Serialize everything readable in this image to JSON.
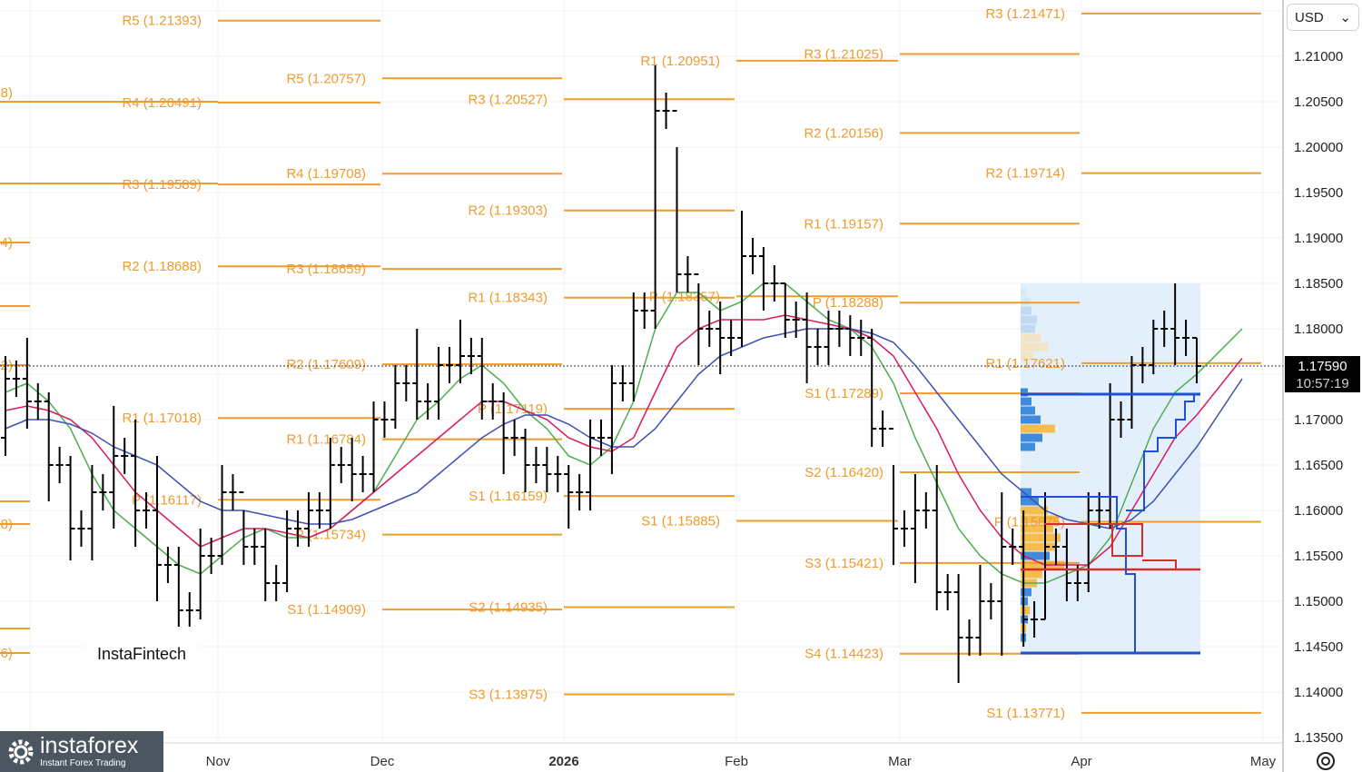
{
  "chart_data": {
    "type": "bar",
    "instrument_note": "OHLC price bars with pivot levels",
    "y_range": [
      1.134,
      1.22
    ],
    "y_ticks": [
      "1.21000",
      "1.20500",
      "1.20000",
      "1.19500",
      "1.19000",
      "1.18500",
      "1.18000",
      "1.17500",
      "1.17000",
      "1.16500",
      "1.16000",
      "1.15500",
      "1.15000",
      "1.14500",
      "1.14000",
      "1.13500"
    ],
    "x_labels": [
      {
        "label": "Nov",
        "bold": false
      },
      {
        "label": "Dec",
        "bold": false
      },
      {
        "label": "2026",
        "bold": true
      },
      {
        "label": "Feb",
        "bold": false
      },
      {
        "label": "Mar",
        "bold": false
      },
      {
        "label": "Apr",
        "bold": false
      },
      {
        "label": "May",
        "bold": false
      }
    ],
    "pivot_blocks": [
      {
        "period": "Oct",
        "levels": [
          {
            "label": "R5 (1.21393)",
            "value": 1.21393
          },
          {
            "label": "R4 (1.20491)",
            "value": 1.20491
          },
          {
            "label": "R3 (1.19589)",
            "value": 1.19589
          },
          {
            "label": "R2 (1.18688)",
            "value": 1.18688
          },
          {
            "label": "R1 (1.17018)",
            "value": 1.17018
          },
          {
            "label": "P (1.16117)",
            "value": 1.16117
          }
        ]
      },
      {
        "period": "Nov",
        "levels": [
          {
            "label": "R5 (1.20757)",
            "value": 1.20757
          },
          {
            "label": "R4 (1.19708)",
            "value": 1.19708
          },
          {
            "label": "R3 (1.18659)",
            "value": 1.18659
          },
          {
            "label": "R2 (1.17609)",
            "value": 1.17609
          },
          {
            "label": "R1 (1.16784)",
            "value": 1.16784
          },
          {
            "label": "P (1.15734)",
            "value": 1.15734
          },
          {
            "label": "S1 (1.14909)",
            "value": 1.14909
          }
        ]
      },
      {
        "period": "Dec",
        "levels": [
          {
            "label": "R3 (1.20527)",
            "value": 1.20527
          },
          {
            "label": "R2 (1.19303)",
            "value": 1.19303
          },
          {
            "label": "R1 (1.18343)",
            "value": 1.18343
          },
          {
            "label": "P (1.17119)",
            "value": 1.17119
          },
          {
            "label": "S1 (1.16159)",
            "value": 1.16159
          },
          {
            "label": "S2 (1.14935)",
            "value": 1.14935
          },
          {
            "label": "S3 (1.13975)",
            "value": 1.13975
          }
        ]
      },
      {
        "period": "Jan",
        "levels": [
          {
            "label": "R1 (1.20951)",
            "value": 1.20951
          },
          {
            "label": "P (1.18357)",
            "value": 1.18357
          },
          {
            "label": "S1 (1.15885)",
            "value": 1.15885
          }
        ]
      },
      {
        "period": "Feb",
        "levels": [
          {
            "label": "R3 (1.21025)",
            "value": 1.21025
          },
          {
            "label": "R2 (1.20156)",
            "value": 1.20156
          },
          {
            "label": "R1 (1.19157)",
            "value": 1.19157
          },
          {
            "label": "P (1.18288)",
            "value": 1.18288
          },
          {
            "label": "S1 (1.17289)",
            "value": 1.17289
          },
          {
            "label": "S2 (1.16420)",
            "value": 1.1642
          },
          {
            "label": "S3 (1.15421)",
            "value": 1.15421
          },
          {
            "label": "S4 (1.14423)",
            "value": 1.14423
          }
        ]
      },
      {
        "period": "Mar",
        "levels": [
          {
            "label": "R3 (1.21471)",
            "value": 1.21471
          },
          {
            "label": "R2 (1.19714)",
            "value": 1.19714
          },
          {
            "label": "R1 (1.17621)",
            "value": 1.17621
          },
          {
            "label": "P (1.15875)",
            "value": 1.15875
          },
          {
            "label": "S1 (1.13771)",
            "value": 1.13771
          }
        ]
      }
    ],
    "edge_labels": [
      "8)",
      "4)",
      "2)",
      "8)",
      "6)"
    ],
    "ohlc_weeks": [
      {
        "o": 1.168,
        "h": 1.177,
        "l": 1.166,
        "c": 1.1745
      },
      {
        "o": 1.1745,
        "h": 1.179,
        "l": 1.169,
        "c": 1.172
      },
      {
        "o": 1.172,
        "h": 1.173,
        "l": 1.161,
        "c": 1.165
      },
      {
        "o": 1.165,
        "h": 1.166,
        "l": 1.1545,
        "c": 1.158
      },
      {
        "o": 1.158,
        "h": 1.165,
        "l": 1.1545,
        "c": 1.162
      },
      {
        "o": 1.162,
        "h": 1.1715,
        "l": 1.158,
        "c": 1.166
      },
      {
        "o": 1.166,
        "h": 1.17,
        "l": 1.156,
        "c": 1.16
      },
      {
        "o": 1.16,
        "h": 1.166,
        "l": 1.15,
        "c": 1.154
      },
      {
        "o": 1.154,
        "h": 1.156,
        "l": 1.147,
        "c": 1.149
      },
      {
        "o": 1.149,
        "h": 1.158,
        "l": 1.148,
        "c": 1.155
      },
      {
        "o": 1.155,
        "h": 1.165,
        "l": 1.154,
        "c": 1.162
      },
      {
        "o": 1.162,
        "h": 1.16,
        "l": 1.154,
        "c": 1.156
      },
      {
        "o": 1.156,
        "h": 1.158,
        "l": 1.15,
        "c": 1.152
      },
      {
        "o": 1.152,
        "h": 1.16,
        "l": 1.151,
        "c": 1.158
      },
      {
        "o": 1.158,
        "h": 1.162,
        "l": 1.156,
        "c": 1.16
      },
      {
        "o": 1.16,
        "h": 1.168,
        "l": 1.158,
        "c": 1.165
      },
      {
        "o": 1.165,
        "h": 1.168,
        "l": 1.161,
        "c": 1.164
      },
      {
        "o": 1.164,
        "h": 1.172,
        "l": 1.162,
        "c": 1.17
      },
      {
        "o": 1.17,
        "h": 1.176,
        "l": 1.169,
        "c": 1.174
      },
      {
        "o": 1.174,
        "h": 1.18,
        "l": 1.17,
        "c": 1.172
      },
      {
        "o": 1.172,
        "h": 1.178,
        "l": 1.17,
        "c": 1.176
      },
      {
        "o": 1.176,
        "h": 1.181,
        "l": 1.174,
        "c": 1.177
      },
      {
        "o": 1.177,
        "h": 1.179,
        "l": 1.17,
        "c": 1.172
      },
      {
        "o": 1.172,
        "h": 1.173,
        "l": 1.164,
        "c": 1.168
      },
      {
        "o": 1.168,
        "h": 1.169,
        "l": 1.162,
        "c": 1.165
      },
      {
        "o": 1.165,
        "h": 1.167,
        "l": 1.162,
        "c": 1.164
      },
      {
        "o": 1.164,
        "h": 1.165,
        "l": 1.158,
        "c": 1.162
      },
      {
        "o": 1.162,
        "h": 1.17,
        "l": 1.16,
        "c": 1.168
      },
      {
        "o": 1.168,
        "h": 1.176,
        "l": 1.164,
        "c": 1.174
      },
      {
        "o": 1.174,
        "h": 1.184,
        "l": 1.172,
        "c": 1.182
      },
      {
        "o": 1.182,
        "h": 1.209,
        "l": 1.18,
        "c": 1.204
      },
      {
        "o": 1.204,
        "h": 1.2,
        "l": 1.184,
        "c": 1.186
      },
      {
        "o": 1.186,
        "h": 1.185,
        "l": 1.176,
        "c": 1.18
      },
      {
        "o": 1.18,
        "h": 1.183,
        "l": 1.175,
        "c": 1.179
      },
      {
        "o": 1.179,
        "h": 1.193,
        "l": 1.178,
        "c": 1.188
      },
      {
        "o": 1.188,
        "h": 1.189,
        "l": 1.182,
        "c": 1.185
      },
      {
        "o": 1.185,
        "h": 1.185,
        "l": 1.179,
        "c": 1.181
      },
      {
        "o": 1.181,
        "h": 1.184,
        "l": 1.174,
        "c": 1.178
      },
      {
        "o": 1.178,
        "h": 1.182,
        "l": 1.176,
        "c": 1.18
      },
      {
        "o": 1.18,
        "h": 1.1815,
        "l": 1.177,
        "c": 1.179
      },
      {
        "o": 1.179,
        "h": 1.18,
        "l": 1.167,
        "c": 1.169
      },
      {
        "o": 1.169,
        "h": 1.165,
        "l": 1.154,
        "c": 1.158
      },
      {
        "o": 1.158,
        "h": 1.164,
        "l": 1.152,
        "c": 1.16
      },
      {
        "o": 1.16,
        "h": 1.165,
        "l": 1.149,
        "c": 1.151
      },
      {
        "o": 1.151,
        "h": 1.153,
        "l": 1.141,
        "c": 1.146
      },
      {
        "o": 1.146,
        "h": 1.154,
        "l": 1.144,
        "c": 1.15
      },
      {
        "o": 1.15,
        "h": 1.162,
        "l": 1.144,
        "c": 1.156
      },
      {
        "o": 1.156,
        "h": 1.16,
        "l": 1.145,
        "c": 1.148
      },
      {
        "o": 1.148,
        "h": 1.162,
        "l": 1.148,
        "c": 1.156
      },
      {
        "o": 1.156,
        "h": 1.158,
        "l": 1.15,
        "c": 1.152
      },
      {
        "o": 1.152,
        "h": 1.162,
        "l": 1.151,
        "c": 1.16
      },
      {
        "o": 1.16,
        "h": 1.174,
        "l": 1.158,
        "c": 1.17
      },
      {
        "o": 1.17,
        "h": 1.177,
        "l": 1.169,
        "c": 1.176
      },
      {
        "o": 1.176,
        "h": 1.181,
        "l": 1.175,
        "c": 1.18
      },
      {
        "o": 1.18,
        "h": 1.185,
        "l": 1.176,
        "c": 1.179
      },
      {
        "o": 1.179,
        "h": 1.179,
        "l": 1.174,
        "c": 1.1759
      }
    ],
    "moving_averages": [
      {
        "color": "#4caf50",
        "values": [
          1.173,
          1.174,
          1.172,
          1.169,
          1.164,
          1.16,
          1.158,
          1.156,
          1.154,
          1.153,
          1.155,
          1.157,
          1.158,
          1.157,
          1.157,
          1.158,
          1.16,
          1.162,
          1.166,
          1.17,
          1.172,
          1.1745,
          1.176,
          1.174,
          1.171,
          1.169,
          1.166,
          1.165,
          1.167,
          1.172,
          1.18,
          1.184,
          1.184,
          1.182,
          1.183,
          1.185,
          1.185,
          1.183,
          1.181,
          1.18,
          1.178,
          1.174,
          1.168,
          1.163,
          1.158,
          1.155,
          1.153,
          1.152,
          1.152,
          1.153,
          1.154,
          1.157,
          1.163,
          1.169,
          1.173,
          1.175
        ]
      },
      {
        "color": "#d81b60",
        "values": [
          1.171,
          1.1715,
          1.171,
          1.17,
          1.168,
          1.165,
          1.162,
          1.16,
          1.158,
          1.156,
          1.157,
          1.158,
          1.158,
          1.1575,
          1.157,
          1.158,
          1.16,
          1.162,
          1.164,
          1.166,
          1.168,
          1.17,
          1.172,
          1.172,
          1.171,
          1.17,
          1.168,
          1.167,
          1.1665,
          1.168,
          1.173,
          1.178,
          1.18,
          1.181,
          1.181,
          1.181,
          1.1815,
          1.181,
          1.1805,
          1.18,
          1.179,
          1.177,
          1.173,
          1.169,
          1.164,
          1.16,
          1.157,
          1.155,
          1.154,
          1.154,
          1.154,
          1.156,
          1.16,
          1.164,
          1.168,
          1.1705
        ]
      },
      {
        "color": "#3f51b5",
        "values": [
          1.169,
          1.17,
          1.17,
          1.1695,
          1.1685,
          1.167,
          1.166,
          1.165,
          1.163,
          1.161,
          1.16,
          1.16,
          1.1595,
          1.159,
          1.1585,
          1.1585,
          1.159,
          1.16,
          1.161,
          1.162,
          1.164,
          1.166,
          1.168,
          1.1695,
          1.1705,
          1.1705,
          1.1695,
          1.168,
          1.167,
          1.167,
          1.169,
          1.172,
          1.175,
          1.177,
          1.178,
          1.179,
          1.1795,
          1.18,
          1.18,
          1.18,
          1.1795,
          1.1785,
          1.176,
          1.173,
          1.17,
          1.167,
          1.164,
          1.162,
          1.16,
          1.159,
          1.1585,
          1.158,
          1.159,
          1.161,
          1.164,
          1.167
        ]
      }
    ],
    "last_price": "1.17590",
    "countdown": "10:57:19"
  },
  "toolbar": {
    "currency": "USD",
    "currency_icon": "chevron-down-icon"
  },
  "branding": {
    "watermark": "InstaFintech",
    "logo_name": "instaforex",
    "logo_tagline": "Instant Forex Trading"
  },
  "colors": {
    "pivot": "#ef9b2d",
    "bars": "#000000",
    "volume_profile_bg": "#e3f0fb",
    "profile_blue": "#2f7fd8",
    "profile_orange": "#f5b73b",
    "level_blue": "#1e4fd8",
    "level_red": "#d32f2f"
  }
}
